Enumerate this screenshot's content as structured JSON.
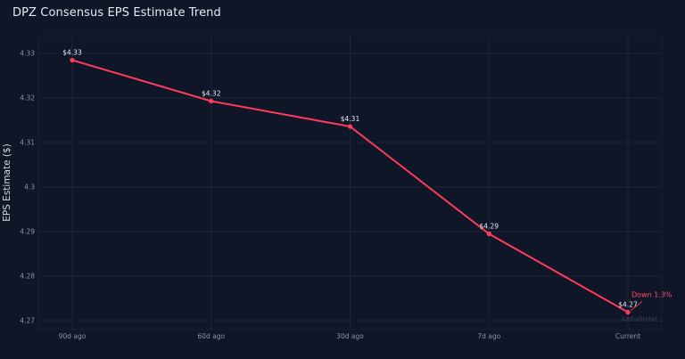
{
  "chart_data": {
    "type": "line",
    "title": "DPZ Consensus EPS Estimate Trend",
    "ylabel": "EPS Estimate ($)",
    "xlabel": "",
    "categories": [
      "90d ago",
      "60d ago",
      "30d ago",
      "7d ago",
      "Current"
    ],
    "values": [
      4.3285,
      4.3193,
      4.3136,
      4.2895,
      4.2719
    ],
    "data_labels": [
      "$4.33",
      "$4.32",
      "$4.31",
      "$4.29",
      "$4.27"
    ],
    "yticks": [
      4.27,
      4.28,
      4.29,
      4.3,
      4.31,
      4.32,
      4.33
    ],
    "ytick_labels": [
      "4.27",
      "4.28",
      "4.29",
      "4.3",
      "4.31",
      "4.32",
      "4.33"
    ],
    "ylim": [
      4.268,
      4.334
    ],
    "grid": true,
    "annotation": "Down 1.3%",
    "watermark": "AlphaStreet",
    "colors": {
      "background": "#0f1628",
      "line": "#ff3b5c",
      "grid": "#1c2438"
    }
  }
}
